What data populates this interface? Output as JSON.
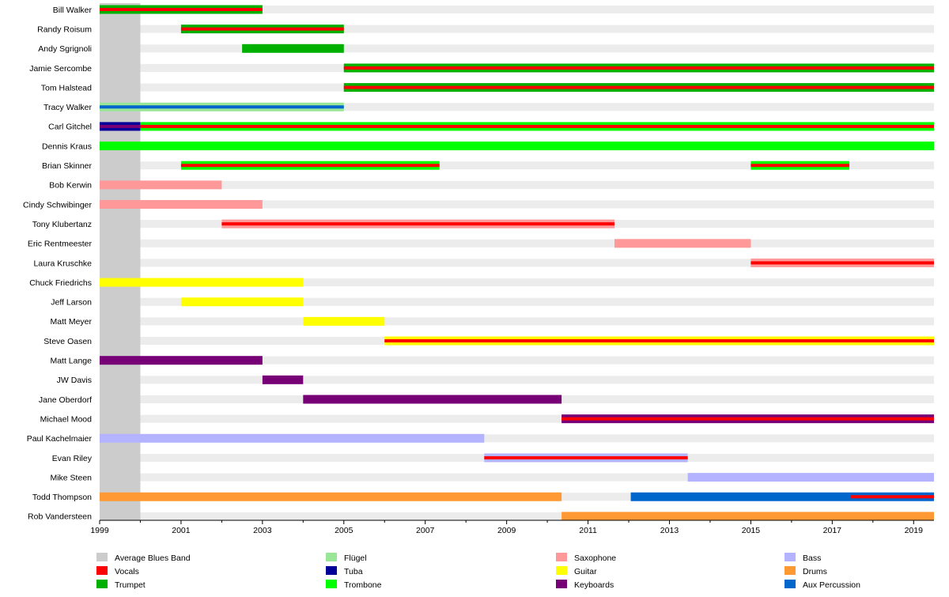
{
  "chart_data": {
    "type": "timeline",
    "title": "",
    "x_range": [
      1999,
      2019.5
    ],
    "ticks": [
      1999,
      2001,
      2003,
      2005,
      2007,
      2009,
      2011,
      2013,
      2015,
      2017,
      2019
    ],
    "tick_labels": [
      "1999",
      "2001",
      "2003",
      "2005",
      "2007",
      "2009",
      "2011",
      "2013",
      "2015",
      "2017",
      "2019"
    ],
    "era": {
      "name": "Average Blues Band",
      "start": 1999,
      "end": 2000
    },
    "colors": {
      "Average Blues Band": "#cccccc",
      "Vocals": "#ff0000",
      "Trumpet": "#00b000",
      "Flügel": "#99e699",
      "Tuba": "#000099",
      "Trombone": "#00ff00",
      "Saxophone": "#ff9999",
      "Guitar": "#ffff00",
      "Keyboards": "#770077",
      "Bass": "#b3b3ff",
      "Drums": "#ff9933",
      "Aux Percussion": "#0066cc",
      "track": "#ececec"
    },
    "members": [
      {
        "name": "Bill Walker",
        "bars": [
          {
            "role": "Trumpet",
            "start": 1999,
            "end": 2003
          }
        ],
        "overlays": [
          {
            "role": "Vocals",
            "start": 1999,
            "end": 2003
          }
        ]
      },
      {
        "name": "Randy Roisum",
        "bars": [
          {
            "role": "Trumpet",
            "start": 2001,
            "end": 2005
          }
        ],
        "overlays": [
          {
            "role": "Vocals",
            "start": 2001,
            "end": 2005
          }
        ]
      },
      {
        "name": "Andy Sgrignoli",
        "bars": [
          {
            "role": "Trumpet",
            "start": 2002.5,
            "end": 2005
          }
        ],
        "overlays": []
      },
      {
        "name": "Jamie Sercombe",
        "bars": [
          {
            "role": "Trumpet",
            "start": 2005,
            "end": 2019.5
          }
        ],
        "overlays": [
          {
            "role": "Vocals",
            "start": 2005,
            "end": 2019.5
          }
        ]
      },
      {
        "name": "Tom Halstead",
        "bars": [
          {
            "role": "Trumpet",
            "start": 2005,
            "end": 2019.5
          }
        ],
        "overlays": [
          {
            "role": "Vocals",
            "start": 2005,
            "end": 2019.5
          }
        ]
      },
      {
        "name": "Tracy Walker",
        "bars": [
          {
            "role": "Flügel",
            "start": 1999,
            "end": 2005
          }
        ],
        "overlays": [
          {
            "role": "Aux Percussion",
            "start": 1999,
            "end": 2005
          }
        ]
      },
      {
        "name": "Carl Gitchel",
        "bars": [
          {
            "role": "Tuba",
            "start": 1999,
            "end": 2000
          },
          {
            "role": "Trombone",
            "start": 2000,
            "end": 2019.5
          }
        ],
        "overlays": [
          {
            "role": "Keyboards",
            "start": 1999,
            "end": 2000
          },
          {
            "role": "Vocals",
            "start": 2000,
            "end": 2019.5
          }
        ]
      },
      {
        "name": "Dennis Kraus",
        "bars": [
          {
            "role": "Trombone",
            "start": 1999,
            "end": 2019.5
          }
        ],
        "overlays": []
      },
      {
        "name": "Brian Skinner",
        "bars": [
          {
            "role": "Trombone",
            "start": 2001,
            "end": 2007.35
          },
          {
            "role": "Trombone",
            "start": 2015,
            "end": 2017.42
          }
        ],
        "overlays": [
          {
            "role": "Vocals",
            "start": 2001,
            "end": 2007.35
          },
          {
            "role": "Vocals",
            "start": 2015,
            "end": 2017.42
          }
        ]
      },
      {
        "name": "Bob Kerwin",
        "bars": [
          {
            "role": "Saxophone",
            "start": 1999,
            "end": 2002
          }
        ],
        "overlays": []
      },
      {
        "name": "Cindy Schwibinger",
        "bars": [
          {
            "role": "Saxophone",
            "start": 1999,
            "end": 2003
          }
        ],
        "overlays": []
      },
      {
        "name": "Tony Klubertanz",
        "bars": [
          {
            "role": "Saxophone",
            "start": 2002,
            "end": 2011.65
          }
        ],
        "overlays": [
          {
            "role": "Vocals",
            "start": 2002,
            "end": 2011.65
          }
        ]
      },
      {
        "name": "Eric Rentmeester",
        "bars": [
          {
            "role": "Saxophone",
            "start": 2011.65,
            "end": 2015
          }
        ],
        "overlays": []
      },
      {
        "name": "Laura Kruschke",
        "bars": [
          {
            "role": "Saxophone",
            "start": 2015,
            "end": 2019.5
          }
        ],
        "overlays": [
          {
            "role": "Vocals",
            "start": 2015,
            "end": 2019.5
          }
        ]
      },
      {
        "name": "Chuck Friedrichs",
        "bars": [
          {
            "role": "Guitar",
            "start": 1999,
            "end": 2004
          }
        ],
        "overlays": []
      },
      {
        "name": "Jeff Larson",
        "bars": [
          {
            "role": "Guitar",
            "start": 2001,
            "end": 2004
          }
        ],
        "overlays": []
      },
      {
        "name": "Matt Meyer",
        "bars": [
          {
            "role": "Guitar",
            "start": 2004,
            "end": 2006
          }
        ],
        "overlays": []
      },
      {
        "name": "Steve Oasen",
        "bars": [
          {
            "role": "Guitar",
            "start": 2006,
            "end": 2019.5
          }
        ],
        "overlays": [
          {
            "role": "Vocals",
            "start": 2006,
            "end": 2019.5
          }
        ]
      },
      {
        "name": "Matt Lange",
        "bars": [
          {
            "role": "Keyboards",
            "start": 1999,
            "end": 2003
          }
        ],
        "overlays": []
      },
      {
        "name": "JW Davis",
        "bars": [
          {
            "role": "Keyboards",
            "start": 2003,
            "end": 2004
          }
        ],
        "overlays": []
      },
      {
        "name": "Jane Oberdorf",
        "bars": [
          {
            "role": "Keyboards",
            "start": 2004,
            "end": 2010.35
          }
        ],
        "overlays": []
      },
      {
        "name": "Michael Mood",
        "bars": [
          {
            "role": "Keyboards",
            "start": 2010.35,
            "end": 2019.5
          }
        ],
        "overlays": [
          {
            "role": "Vocals",
            "start": 2010.35,
            "end": 2019.5
          }
        ]
      },
      {
        "name": "Paul Kachelmaier",
        "bars": [
          {
            "role": "Bass",
            "start": 1999,
            "end": 2008.45
          }
        ],
        "overlays": []
      },
      {
        "name": "Evan Riley",
        "bars": [
          {
            "role": "Bass",
            "start": 2008.45,
            "end": 2013.45
          }
        ],
        "overlays": [
          {
            "role": "Vocals",
            "start": 2008.45,
            "end": 2013.45
          }
        ]
      },
      {
        "name": "Mike Steen",
        "bars": [
          {
            "role": "Bass",
            "start": 2013.45,
            "end": 2019.5
          }
        ],
        "overlays": []
      },
      {
        "name": "Todd Thompson",
        "bars": [
          {
            "role": "Drums",
            "start": 1999,
            "end": 2010.35
          },
          {
            "role": "Aux Percussion",
            "start": 2012.05,
            "end": 2019.5
          }
        ],
        "overlays": [
          {
            "role": "Vocals",
            "start": 2017.45,
            "end": 2019.5
          }
        ]
      },
      {
        "name": "Rob Vandersteen",
        "bars": [
          {
            "role": "Drums",
            "start": 2010.35,
            "end": 2019.5
          }
        ],
        "overlays": []
      }
    ],
    "legend": [
      [
        "Average Blues Band",
        "Vocals",
        "Trumpet"
      ],
      [
        "Flügel",
        "Tuba",
        "Trombone"
      ],
      [
        "Saxophone",
        "Guitar",
        "Keyboards"
      ],
      [
        "Bass",
        "Drums",
        "Aux Percussion"
      ]
    ]
  }
}
